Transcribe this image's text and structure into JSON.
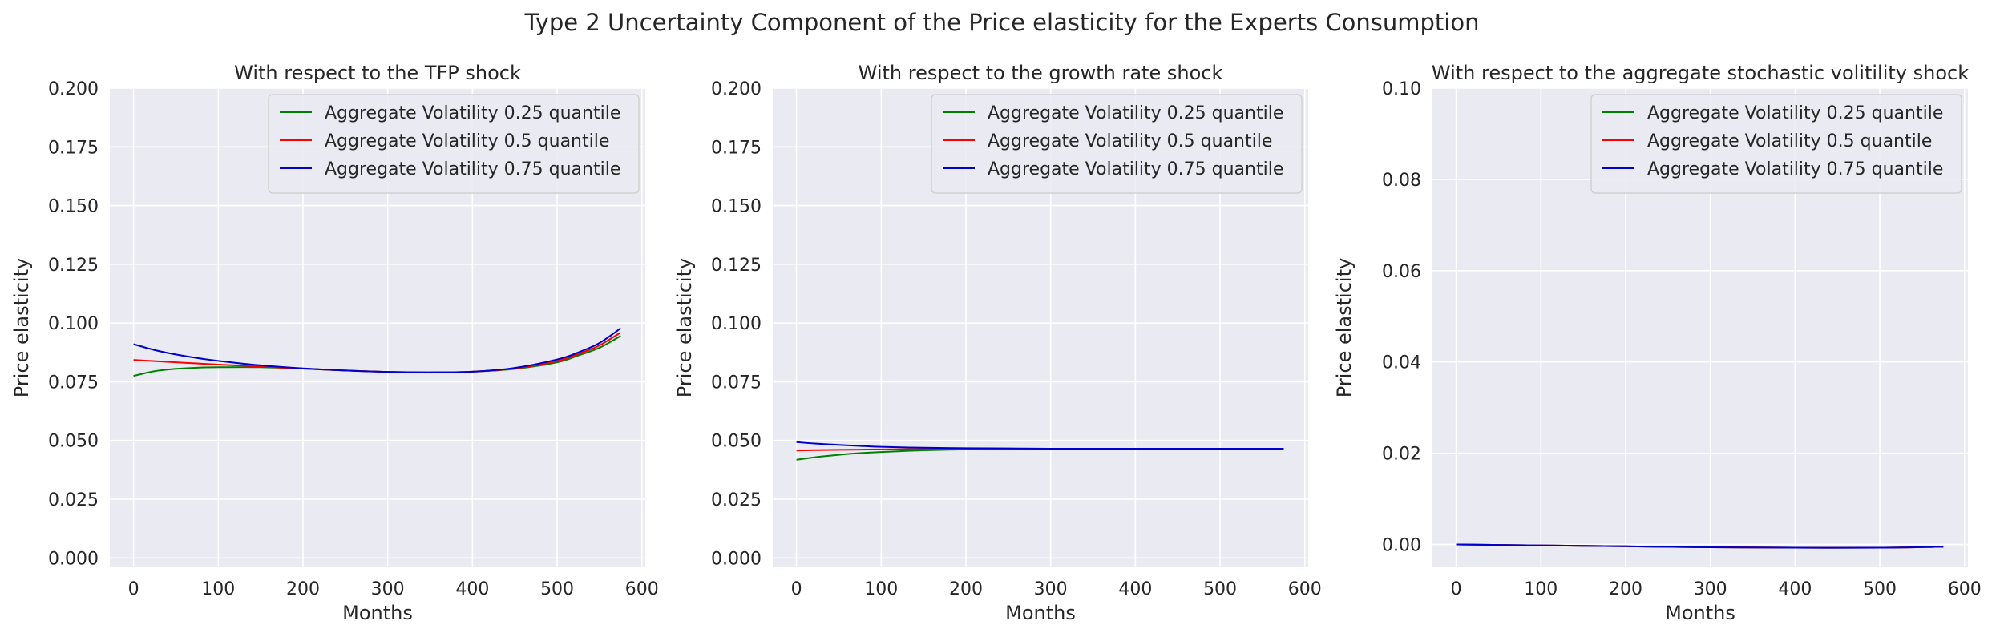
{
  "figure": {
    "title": "Type 2 Uncertainty Component of the Price elasticity for the Experts Consumption"
  },
  "chart_data": [
    {
      "type": "line",
      "title": "With respect to the TFP shock",
      "xlabel": "Months",
      "ylabel": "Price elasticity",
      "xlim": [
        -28,
        604
      ],
      "ylim": [
        -0.004,
        0.2
      ],
      "xticks": [
        0,
        100,
        200,
        300,
        400,
        500,
        600
      ],
      "yticks": [
        0.0,
        0.025,
        0.05,
        0.075,
        0.1,
        0.125,
        0.15,
        0.175,
        0.2
      ],
      "ytick_labels": [
        "0.000",
        "0.025",
        "0.050",
        "0.075",
        "0.100",
        "0.125",
        "0.150",
        "0.175",
        "0.200"
      ],
      "grid": true,
      "legend_position": "top-right",
      "series": [
        {
          "name": "Aggregate Volatility 0.25 quantile",
          "color": "#008000",
          "x": [
            0,
            25,
            50,
            75,
            100,
            150,
            200,
            250,
            300,
            350,
            400,
            450,
            500,
            525,
            550,
            575
          ],
          "y": [
            0.0775,
            0.0795,
            0.0805,
            0.081,
            0.0812,
            0.0812,
            0.0806,
            0.0798,
            0.0792,
            0.079,
            0.0793,
            0.0805,
            0.0833,
            0.0862,
            0.0895,
            0.0945
          ]
        },
        {
          "name": "Aggregate Volatility 0.5 quantile",
          "color": "#ff0000",
          "x": [
            0,
            25,
            50,
            75,
            100,
            150,
            200,
            250,
            300,
            350,
            400,
            450,
            500,
            525,
            550,
            575
          ],
          "y": [
            0.0843,
            0.0838,
            0.0833,
            0.0828,
            0.0823,
            0.0815,
            0.0806,
            0.0798,
            0.0792,
            0.079,
            0.0793,
            0.0807,
            0.0838,
            0.0868,
            0.0905,
            0.096
          ]
        },
        {
          "name": "Aggregate Volatility 0.75 quantile",
          "color": "#0000cc",
          "x": [
            0,
            25,
            50,
            75,
            100,
            150,
            200,
            250,
            300,
            350,
            400,
            450,
            500,
            525,
            550,
            575
          ],
          "y": [
            0.091,
            0.0885,
            0.0866,
            0.0851,
            0.0839,
            0.082,
            0.0807,
            0.0798,
            0.0792,
            0.079,
            0.0793,
            0.0809,
            0.0845,
            0.0875,
            0.0915,
            0.0978
          ]
        }
      ]
    },
    {
      "type": "line",
      "title": "With respect to the growth rate shock",
      "xlabel": "Months",
      "ylabel": "Price elasticity",
      "xlim": [
        -28,
        604
      ],
      "ylim": [
        -0.004,
        0.2
      ],
      "xticks": [
        0,
        100,
        200,
        300,
        400,
        500,
        600
      ],
      "yticks": [
        0.0,
        0.025,
        0.05,
        0.075,
        0.1,
        0.125,
        0.15,
        0.175,
        0.2
      ],
      "ytick_labels": [
        "0.000",
        "0.025",
        "0.050",
        "0.075",
        "0.100",
        "0.125",
        "0.150",
        "0.175",
        "0.200"
      ],
      "grid": true,
      "legend_position": "top-right",
      "series": [
        {
          "name": "Aggregate Volatility 0.25 quantile",
          "color": "#008000",
          "x": [
            0,
            25,
            50,
            75,
            100,
            150,
            200,
            250,
            300,
            400,
            500,
            575
          ],
          "y": [
            0.0418,
            0.043,
            0.0439,
            0.0446,
            0.0451,
            0.0458,
            0.0462,
            0.0464,
            0.0465,
            0.0465,
            0.0465,
            0.0465
          ]
        },
        {
          "name": "Aggregate Volatility 0.5 quantile",
          "color": "#ff0000",
          "x": [
            0,
            25,
            50,
            75,
            100,
            150,
            200,
            250,
            300,
            400,
            500,
            575
          ],
          "y": [
            0.0457,
            0.0459,
            0.046,
            0.0461,
            0.0462,
            0.0463,
            0.0464,
            0.0465,
            0.0465,
            0.0465,
            0.0465,
            0.0465
          ]
        },
        {
          "name": "Aggregate Volatility 0.75 quantile",
          "color": "#0000cc",
          "x": [
            0,
            25,
            50,
            75,
            100,
            150,
            200,
            250,
            300,
            400,
            500,
            575
          ],
          "y": [
            0.0493,
            0.0486,
            0.0481,
            0.0477,
            0.0473,
            0.0469,
            0.0467,
            0.0466,
            0.0465,
            0.0465,
            0.0465,
            0.0465
          ]
        }
      ]
    },
    {
      "type": "line",
      "title": "With respect to the aggregate stochastic volitility shock",
      "xlabel": "Months",
      "ylabel": "Price elasticity",
      "xlim": [
        -28,
        604
      ],
      "ylim": [
        -0.005,
        0.1
      ],
      "xticks": [
        0,
        100,
        200,
        300,
        400,
        500,
        600
      ],
      "yticks": [
        0.0,
        0.02,
        0.04,
        0.06,
        0.08,
        0.1
      ],
      "ytick_labels": [
        "0.00",
        "0.02",
        "0.04",
        "0.06",
        "0.08",
        "0.10"
      ],
      "grid": true,
      "legend_position": "top-right",
      "series": [
        {
          "name": "Aggregate Volatility 0.25 quantile",
          "color": "#008000",
          "x": [
            0,
            100,
            200,
            300,
            400,
            500,
            575
          ],
          "y": [
            0.0,
            -0.0002,
            -0.0004,
            -0.0006,
            -0.0007,
            -0.0007,
            -0.0005
          ]
        },
        {
          "name": "Aggregate Volatility 0.5 quantile",
          "color": "#ff0000",
          "x": [
            0,
            100,
            200,
            300,
            400,
            500,
            575
          ],
          "y": [
            0.0,
            -0.0002,
            -0.0004,
            -0.0006,
            -0.0007,
            -0.0007,
            -0.0005
          ]
        },
        {
          "name": "Aggregate Volatility 0.75 quantile",
          "color": "#0000cc",
          "x": [
            0,
            100,
            200,
            300,
            400,
            500,
            575
          ],
          "y": [
            0.0,
            -0.0002,
            -0.0004,
            -0.0006,
            -0.0007,
            -0.0007,
            -0.0005
          ]
        }
      ]
    }
  ]
}
